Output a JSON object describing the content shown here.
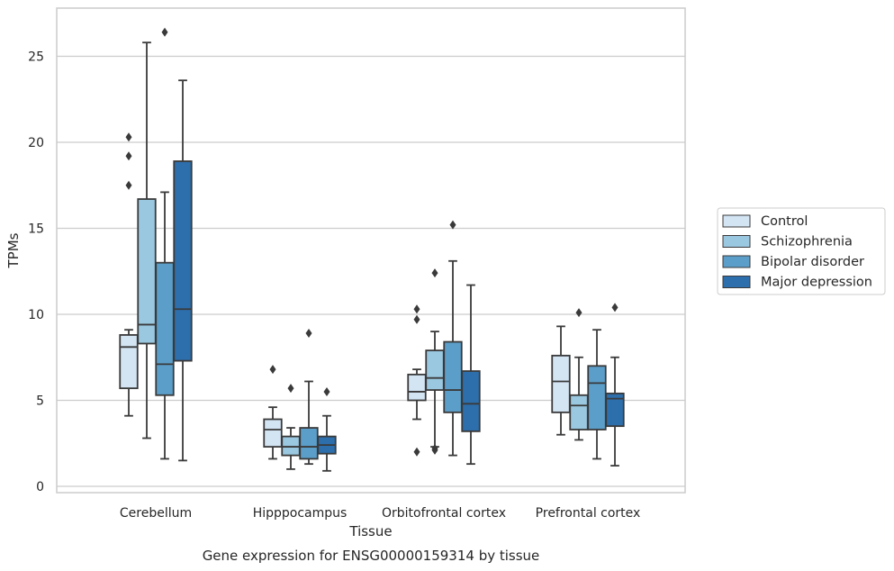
{
  "chart_data": {
    "type": "box",
    "xlabel": "Tissue",
    "ylabel": "TPMs",
    "caption": "Gene expression for ENSG00000159314 by tissue",
    "ylim": [
      -0.4,
      27.6
    ],
    "yticks": [
      0,
      5,
      10,
      15,
      20,
      25
    ],
    "grid": "horizontal",
    "legend_position": "right",
    "categories": [
      "Cerebellum",
      "Hipppocampus",
      "Orbitofrontal cortex",
      "Prefrontal cortex"
    ],
    "series": [
      {
        "name": "Control",
        "color": "#d3e4f3",
        "boxes": [
          {
            "whislo": 4.1,
            "q1": 5.7,
            "med": 8.1,
            "q3": 8.8,
            "whishi": 9.1,
            "fliers": [
              17.5,
              19.2,
              20.3
            ]
          },
          {
            "whislo": 1.6,
            "q1": 2.3,
            "med": 3.3,
            "q3": 3.9,
            "whishi": 4.6,
            "fliers": [
              6.8
            ]
          },
          {
            "whislo": 3.9,
            "q1": 5.0,
            "med": 5.5,
            "q3": 6.5,
            "whishi": 6.8,
            "fliers": [
              2.0,
              9.7,
              10.3
            ]
          },
          {
            "whislo": 3.0,
            "q1": 4.3,
            "med": 6.1,
            "q3": 7.6,
            "whishi": 9.3,
            "fliers": []
          }
        ]
      },
      {
        "name": "Schizophrenia",
        "color": "#9ac8e0",
        "boxes": [
          {
            "whislo": 2.8,
            "q1": 8.3,
            "med": 9.4,
            "q3": 16.7,
            "whishi": 25.8,
            "fliers": []
          },
          {
            "whislo": 1.0,
            "q1": 1.8,
            "med": 2.3,
            "q3": 2.9,
            "whishi": 3.4,
            "fliers": [
              5.7
            ]
          },
          {
            "whislo": 2.3,
            "q1": 5.6,
            "med": 6.3,
            "q3": 7.9,
            "whishi": 9.0,
            "fliers": [
              2.1,
              2.2,
              12.4
            ]
          },
          {
            "whislo": 2.7,
            "q1": 3.3,
            "med": 4.7,
            "q3": 5.3,
            "whishi": 7.5,
            "fliers": [
              10.1
            ]
          }
        ]
      },
      {
        "name": "Bipolar disorder",
        "color": "#5b9ec9",
        "boxes": [
          {
            "whislo": 1.6,
            "q1": 5.3,
            "med": 7.1,
            "q3": 13.0,
            "whishi": 17.1,
            "fliers": [
              26.4
            ]
          },
          {
            "whislo": 1.3,
            "q1": 1.6,
            "med": 2.3,
            "q3": 3.4,
            "whishi": 6.1,
            "fliers": [
              8.9
            ]
          },
          {
            "whislo": 1.8,
            "q1": 4.3,
            "med": 5.6,
            "q3": 8.4,
            "whishi": 13.1,
            "fliers": [
              15.2
            ]
          },
          {
            "whislo": 1.6,
            "q1": 3.3,
            "med": 6.0,
            "q3": 7.0,
            "whishi": 9.1,
            "fliers": []
          }
        ]
      },
      {
        "name": "Major depression",
        "color": "#2d6eac",
        "boxes": [
          {
            "whislo": 1.5,
            "q1": 7.3,
            "med": 10.3,
            "q3": 18.9,
            "whishi": 23.6,
            "fliers": []
          },
          {
            "whislo": 0.9,
            "q1": 1.9,
            "med": 2.4,
            "q3": 2.9,
            "whishi": 4.1,
            "fliers": [
              5.5
            ]
          },
          {
            "whislo": 1.3,
            "q1": 3.2,
            "med": 4.8,
            "q3": 6.7,
            "whishi": 11.7,
            "fliers": []
          },
          {
            "whislo": 1.2,
            "q1": 3.5,
            "med": 5.1,
            "q3": 5.4,
            "whishi": 7.5,
            "fliers": [
              10.4
            ]
          }
        ]
      }
    ]
  }
}
